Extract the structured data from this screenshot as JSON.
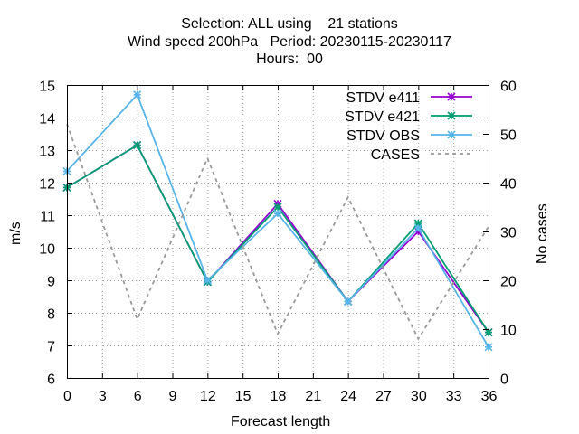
{
  "chart_data": {
    "type": "line",
    "title": [
      "Selection: ALL using    21 stations",
      "Wind speed 200hPa   Period: 20230115-20230117",
      "Hours:  00"
    ],
    "xlabel": "Forecast length",
    "ylabel": "m/s",
    "y2label": "No cases",
    "xlim": [
      0,
      36
    ],
    "ylim": [
      6,
      15
    ],
    "y2lim": [
      0,
      60
    ],
    "x_ticks": [
      "0",
      "3",
      "6",
      "9",
      "12",
      "15",
      "18",
      "21",
      "24",
      "27",
      "30",
      "33",
      "36"
    ],
    "y_ticks": [
      "6",
      "7",
      "8",
      "9",
      "10",
      "11",
      "12",
      "13",
      "14",
      "15"
    ],
    "y2_ticks": [
      "0",
      "10",
      "20",
      "30",
      "40",
      "50",
      "60"
    ],
    "grid": true,
    "legend_position": "top-right",
    "x": [
      0,
      6,
      12,
      18,
      24,
      30,
      36
    ],
    "series": [
      {
        "name": "STDV e411",
        "color": "#9400d3",
        "style": "solid",
        "marker": "x",
        "axis": "y",
        "values": [
          11.85,
          13.15,
          8.95,
          11.35,
          8.35,
          10.5,
          7.4
        ]
      },
      {
        "name": "STDV e421",
        "color": "#009e73",
        "style": "solid",
        "marker": "x",
        "axis": "y",
        "values": [
          11.85,
          13.15,
          8.95,
          11.25,
          8.35,
          10.75,
          7.4
        ]
      },
      {
        "name": "STDV OBS",
        "color": "#56b4e9",
        "style": "solid",
        "marker": "x",
        "axis": "y",
        "values": [
          12.35,
          14.7,
          9.0,
          11.05,
          8.35,
          10.6,
          6.95
        ]
      },
      {
        "name": "CASES",
        "color": "#999999",
        "style": "dashed",
        "marker": "none",
        "axis": "y2",
        "values": [
          52,
          12,
          45,
          9,
          37,
          8,
          31
        ]
      }
    ]
  }
}
